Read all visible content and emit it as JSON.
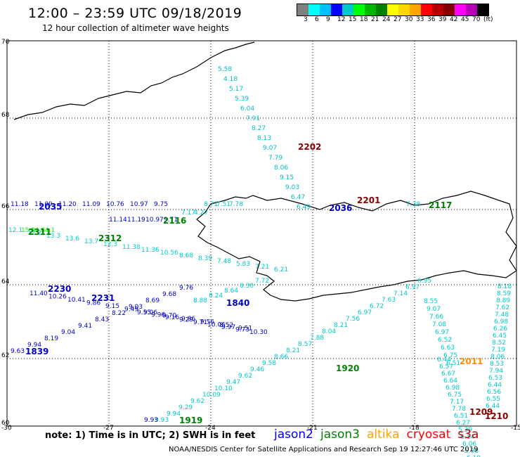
{
  "header": {
    "title": "12:00 – 23:59 UTC 09/18/2019",
    "subtitle": "12 hour collection of altimeter wave heights"
  },
  "colorbar": {
    "colors": [
      "#808080",
      "#00ffff",
      "#00bfff",
      "#0000ff",
      "#00c8c8",
      "#00ff00",
      "#00b400",
      "#008000",
      "#ffff00",
      "#ffd700",
      "#ffa500",
      "#ff0000",
      "#b40000",
      "#800000",
      "#ff00ff",
      "#b400b4",
      "#000000"
    ],
    "labels": [
      "3",
      "6",
      "9",
      "12",
      "15",
      "18",
      "21",
      "24",
      "27",
      "30",
      "33",
      "36",
      "39",
      "42",
      "45",
      "70",
      "(ft)"
    ]
  },
  "axes": {
    "x_ticks": [
      "-30",
      "-27",
      "-24",
      "-21",
      "-18",
      "-15"
    ],
    "y_ticks": [
      "70",
      "68",
      "66",
      "64",
      "62",
      "60"
    ]
  },
  "tracks": [
    {
      "id": "t1",
      "color": "#00bfc8",
      "values": [
        "5.58",
        "4.18",
        "5.17",
        "5.39",
        "6.04",
        "7.91",
        "8.27",
        "8.13",
        "9.07",
        "7.79",
        "8.06",
        "9.15",
        "9.03",
        "6.47",
        "6.49"
      ],
      "time": "2202",
      "time_color": "#8b0000"
    },
    {
      "id": "t2",
      "color": "#0000c8",
      "values": [
        "11.18",
        "11.09",
        "11.20",
        "11.09",
        "10.76",
        "10.97",
        "9.75"
      ],
      "time": "2035",
      "time_color": "#0000c8"
    },
    {
      "id": "t3",
      "color": "#00c8c8",
      "values": [
        "8.71",
        "7.51",
        "7.78"
      ],
      "time": "2036",
      "time_color": "#0000c8"
    },
    {
      "id": "t4",
      "color": "#0000c8",
      "values": [
        "11.14",
        "11.19",
        "10.97",
        "9.71"
      ],
      "time": "2116",
      "time_color": "#008000"
    },
    {
      "id": "t5",
      "color": "#00c8c8",
      "values": [
        "7.17",
        "4.27"
      ],
      "time": "2201",
      "time_color": "#8b0000"
    },
    {
      "id": "t6",
      "color": "#00c8c8",
      "values": [
        "7.38"
      ],
      "time": "2117",
      "time_color": "#008000"
    },
    {
      "id": "t7",
      "color": "#00c8c8",
      "values": [
        "12.1",
        "12.2",
        "13.3",
        "13.6",
        "13.7",
        "12.3",
        "11.38",
        "11.36",
        "10.56",
        "8.68",
        "8.39",
        "7.48",
        "5.83",
        "7.21",
        "6.21"
      ],
      "time": "2312",
      "time_color": "#008000"
    },
    {
      "id": "t8",
      "color": "#00ff00",
      "values": [
        "15.9",
        "14.6",
        "14.1"
      ],
      "time": "2311",
      "time_color": "#008000"
    },
    {
      "id": "t9",
      "color": "#0000c8",
      "values": [
        "11.40",
        "10.26",
        "10.41",
        "9.86",
        "9.15",
        "9.49",
        "9.06",
        "9.70",
        "9.86",
        "9.56",
        "8.52",
        "9.51"
      ],
      "time": "2230",
      "time_color": "#0000c8"
    },
    {
      "id": "t10",
      "color": "#0000c8",
      "values": [
        "9.55",
        "9.96",
        "9.16",
        "9.29",
        "9.71",
        "10.06",
        "9.97",
        "9.73",
        "10.30"
      ],
      "time": "2231",
      "time_color": "#0000c8"
    },
    {
      "id": "t11",
      "color": "#00c8c8",
      "values": [
        "8.88",
        "8.24",
        "8.64",
        "8.30",
        "7.72"
      ],
      "time": "1840",
      "time_color": "#0000c8"
    },
    {
      "id": "t12",
      "color": "#0000c8",
      "values": [
        "9.63",
        "9.94",
        "8.19",
        "9.04",
        "9.41",
        "8.43",
        "8.22",
        "9.03",
        "8.69",
        "9.68",
        "9.76"
      ],
      "time": "1839",
      "time_color": "#0000c8"
    },
    {
      "id": "t13",
      "color": "#00c8c8",
      "values": [
        "8.55",
        "9.07",
        "7.66",
        "7.08",
        "6.97",
        "6.52",
        "6.63",
        "6.75",
        "6.51"
      ],
      "time": "",
      "time_color": "#000"
    },
    {
      "id": "t14",
      "color": "#00c8c8",
      "values": [
        "8.18",
        "8.59",
        "8.89",
        "7.62",
        "7.48",
        "6.98",
        "6.26",
        "6.45",
        "8.52",
        "7.19",
        "8.06",
        "8.53",
        "7.94",
        "6.53",
        "6.44",
        "6.56",
        "6.55",
        "6.44"
      ],
      "time": "2011",
      "time_color": "#ff8c00"
    },
    {
      "id": "t15",
      "color": "#00c8c8",
      "values": [
        "9.93",
        "9.94",
        "9.29",
        "9.62",
        "10.09",
        "10.10",
        "9.47",
        "9.62",
        "9.46",
        "9.58",
        "8.66",
        "8.21",
        "8.57",
        "7.88",
        "8.04",
        "8.21",
        "7.56",
        "6.97",
        "6.72",
        "7.63",
        "7.14",
        "6.97",
        "6.95"
      ],
      "time": "1920",
      "time_color": "#008000"
    },
    {
      "id": "t16",
      "color": "#00c8c8",
      "values": [
        "6.44",
        "6.57",
        "6.67",
        "6.64",
        "6.98",
        "6.75",
        "7.17",
        "7.78",
        "6.51",
        "6.27",
        "5.39",
        "6.14",
        "6.06",
        "5.98",
        "6.19"
      ],
      "time": "1210",
      "time_color": "#8b0000"
    },
    {
      "id": "t17",
      "color": "#0000c8",
      "values": [
        "9.93"
      ],
      "time": "1919",
      "time_color": "#008000"
    },
    {
      "id": "t18",
      "color": "#8b0000",
      "values": [],
      "time": "1209",
      "time_color": "#8b0000"
    }
  ],
  "note": "note: 1) Time is in UTC; 2) SWH is in feet",
  "legend": [
    {
      "name": "jason2",
      "color": "#0000ff"
    },
    {
      "name": "jason3",
      "color": "#008000"
    },
    {
      "name": "altika",
      "color": "#ffa500"
    },
    {
      "name": "cryosat",
      "color": "#ff0000"
    },
    {
      "name": "s3a",
      "color": "#b40000"
    }
  ],
  "footer": "NOAA/NESDIS Center for Satellite Applications and Research    Sep 19 12:27:46 UTC 2019"
}
